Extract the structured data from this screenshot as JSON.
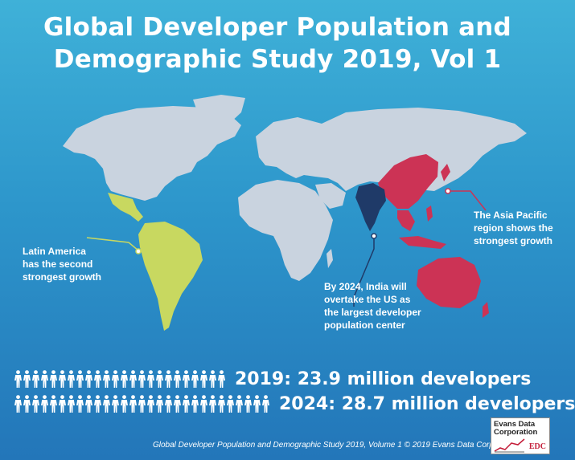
{
  "title": {
    "line1": "Global Developer Population and",
    "line2": "Demographic Study 2019, Vol 1"
  },
  "map": {
    "colors": {
      "land": "#c9d3df",
      "latin_america": "#c8d860",
      "asia_pacific": "#cc3355",
      "india": "#1f3a68",
      "callout_line_latin": "#c8d860",
      "callout_line_asia": "#cc3355",
      "callout_line_india": "#1f3a68"
    }
  },
  "callouts": {
    "latin_america": [
      "Latin America",
      "has the second",
      "strongest growth"
    ],
    "asia_pacific": [
      "The Asia Pacific",
      "region shows the",
      "strongest growth"
    ],
    "india": [
      "By 2024, India will",
      "overtake the US as",
      "the largest developer",
      "population center"
    ]
  },
  "stats": {
    "row_2019": {
      "text": "2019: 23.9 million developers",
      "icon_count": 24
    },
    "row_2024": {
      "text": "2024: 28.7 million developers",
      "icon_count": 29
    }
  },
  "footer": "Global Developer Population and Demographic Study 2019, Volume 1 © 2019 Evans Data Corp",
  "logo": {
    "line1": "Evans Data",
    "line2": "Corporation",
    "line3": "EDC"
  }
}
